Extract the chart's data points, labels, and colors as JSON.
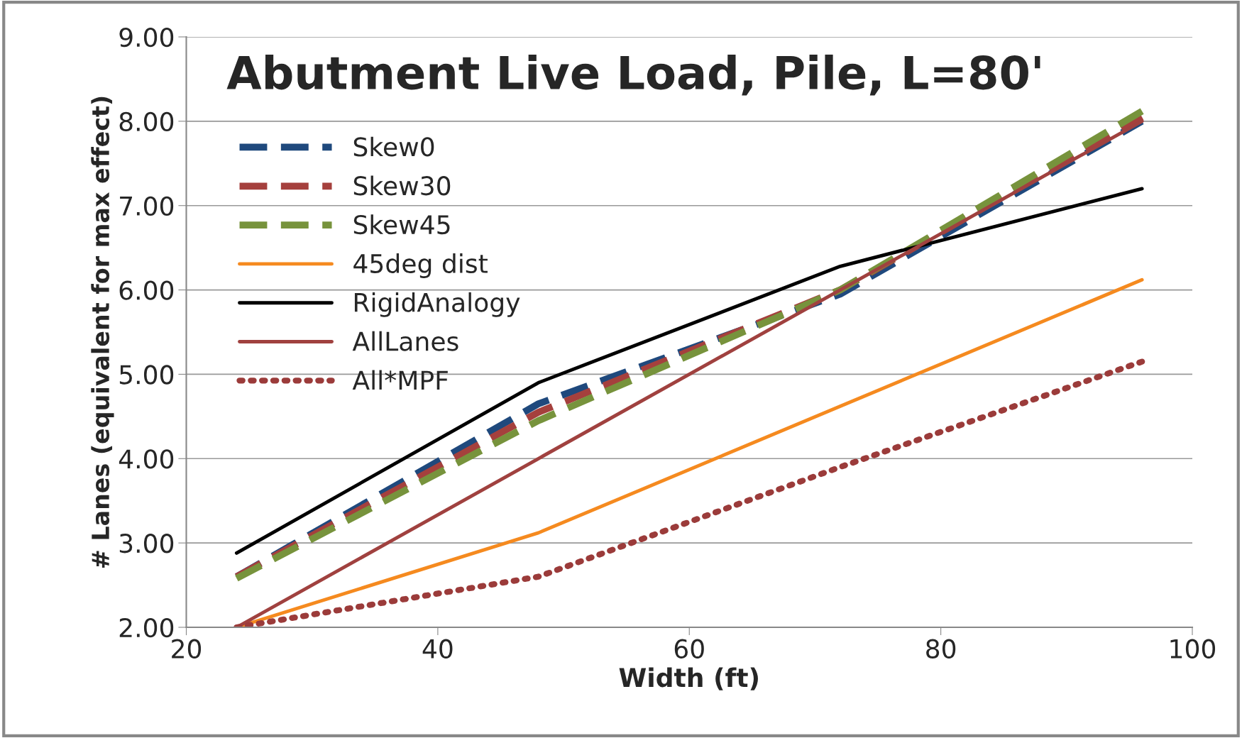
{
  "chart_data": {
    "type": "line",
    "title": "Abutment Live Load, Pile, L=80'",
    "xlabel": "Width (ft)",
    "ylabel": "# Lanes (equivalent for max effect)",
    "x": [
      24,
      48,
      72,
      96
    ],
    "series": [
      {
        "name": "Skew0",
        "color": "#1f497d",
        "line_style": "dashed",
        "values": [
          2.6,
          4.65,
          5.95,
          8.0
        ]
      },
      {
        "name": "Skew30",
        "color": "#a5403d",
        "line_style": "dashed",
        "values": [
          2.6,
          4.55,
          6.0,
          8.05
        ]
      },
      {
        "name": "Skew45",
        "color": "#77933c",
        "line_style": "dashed",
        "values": [
          2.58,
          4.45,
          6.0,
          8.12
        ]
      },
      {
        "name": "45deg dist",
        "color": "#f58a1f",
        "line_style": "solid",
        "values": [
          2.0,
          3.12,
          4.62,
          6.12
        ]
      },
      {
        "name": "RigidAnalogy",
        "color": "#000000",
        "line_style": "solid",
        "values": [
          2.88,
          4.9,
          6.28,
          7.2
        ]
      },
      {
        "name": "AllLanes",
        "color": "#a0413f",
        "line_style": "solid",
        "values": [
          2.0,
          4.0,
          6.0,
          8.0
        ]
      },
      {
        "name": "All*MPF",
        "color": "#9b3b3a",
        "line_style": "dotted",
        "values": [
          2.0,
          2.6,
          3.9,
          5.15
        ]
      }
    ],
    "xlim": [
      20,
      100
    ],
    "xticks": [
      20,
      40,
      60,
      80,
      100
    ],
    "ylim": [
      2,
      9
    ],
    "yticks": [
      {
        "value": 2,
        "label": "2.00"
      },
      {
        "value": 3,
        "label": "3.00"
      },
      {
        "value": 4,
        "label": "4.00"
      },
      {
        "value": 5,
        "label": "5.00"
      },
      {
        "value": 6,
        "label": "6.00"
      },
      {
        "value": 7,
        "label": "7.00"
      },
      {
        "value": 8,
        "label": "8.00"
      },
      {
        "value": 9,
        "label": "9.00"
      }
    ],
    "grid": "y",
    "legend": "top left",
    "marker": "none"
  }
}
